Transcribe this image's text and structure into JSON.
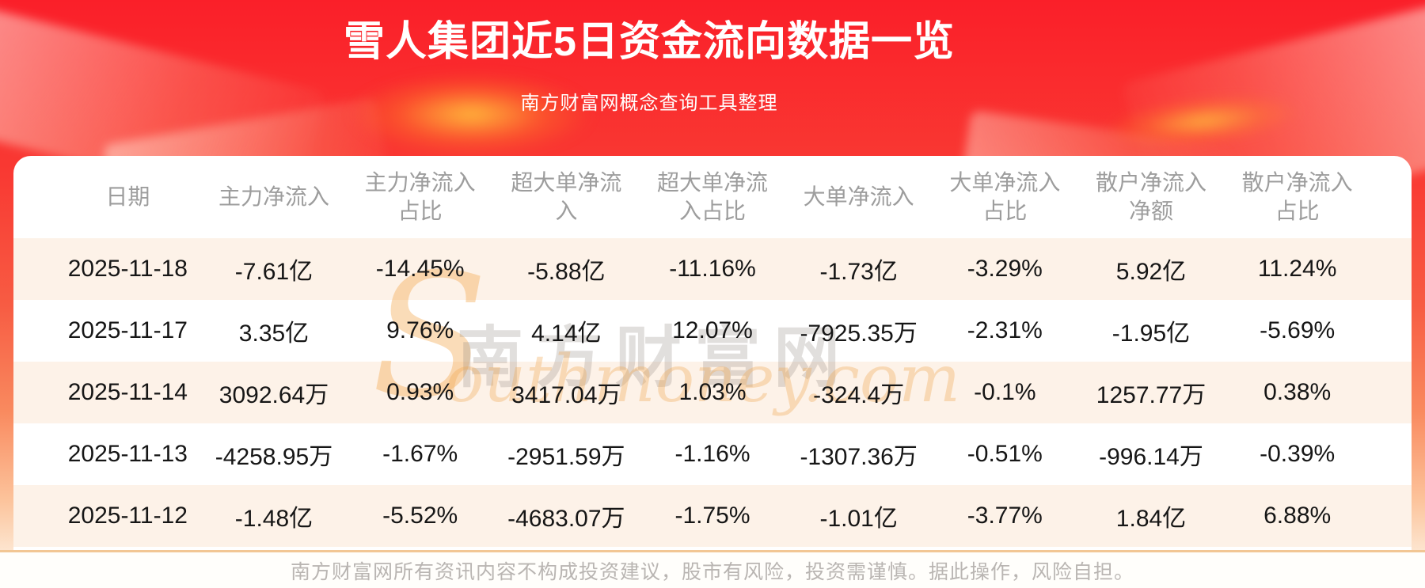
{
  "header": {
    "title": "雪人集团近5日资金流向数据一览",
    "subtitle": "南方财富网概念查询工具整理"
  },
  "chart_data": {
    "type": "table",
    "title": "雪人集团近5日资金流向数据一览",
    "columns": [
      "日期",
      "主力净流入",
      "主力净流入占比",
      "超大单净流入",
      "超大单净流入占比",
      "大单净流入",
      "大单净流入占比",
      "散户净流入净额",
      "散户净流入占比"
    ],
    "rows": [
      [
        "2025-11-18",
        "-7.61亿",
        "-14.45%",
        "-5.88亿",
        "-11.16%",
        "-1.73亿",
        "-3.29%",
        "5.92亿",
        "11.24%"
      ],
      [
        "2025-11-17",
        "3.35亿",
        "9.76%",
        "4.14亿",
        "12.07%",
        "-7925.35万",
        "-2.31%",
        "-1.95亿",
        "-5.69%"
      ],
      [
        "2025-11-14",
        "3092.64万",
        "0.93%",
        "3417.04万",
        "1.03%",
        "-324.4万",
        "-0.1%",
        "1257.77万",
        "0.38%"
      ],
      [
        "2025-11-13",
        "-4258.95万",
        "-1.67%",
        "-2951.59万",
        "-1.16%",
        "-1307.36万",
        "-0.51%",
        "-996.14万",
        "-0.39%"
      ],
      [
        "2025-11-12",
        "-1.48亿",
        "-5.52%",
        "-4683.07万",
        "-1.75%",
        "-1.01亿",
        "-3.77%",
        "1.84亿",
        "6.88%"
      ]
    ],
    "layout_hints": {
      "stripe_rows": "odd rows shaded cream",
      "header_row": "gray text, two-line wrap"
    }
  },
  "watermark": {
    "cn_chars": "南方财富网",
    "en_initial": "S",
    "en_rest": "outhmoney.com"
  },
  "footer": {
    "disclaimer": "南方财富网所有资讯内容不构成投资建议，股市有风险，投资需谨慎。据此操作，风险自担。"
  },
  "colors": {
    "banner_red_top": "#fa1f29",
    "banner_fade_bottom": "#fefbf7",
    "row_stripe": "#fdf2e8",
    "header_text": "#9d9d9d",
    "data_text": "#161616",
    "divider_orange": "#f2c694",
    "watermark_orange": "#f0a44a"
  }
}
